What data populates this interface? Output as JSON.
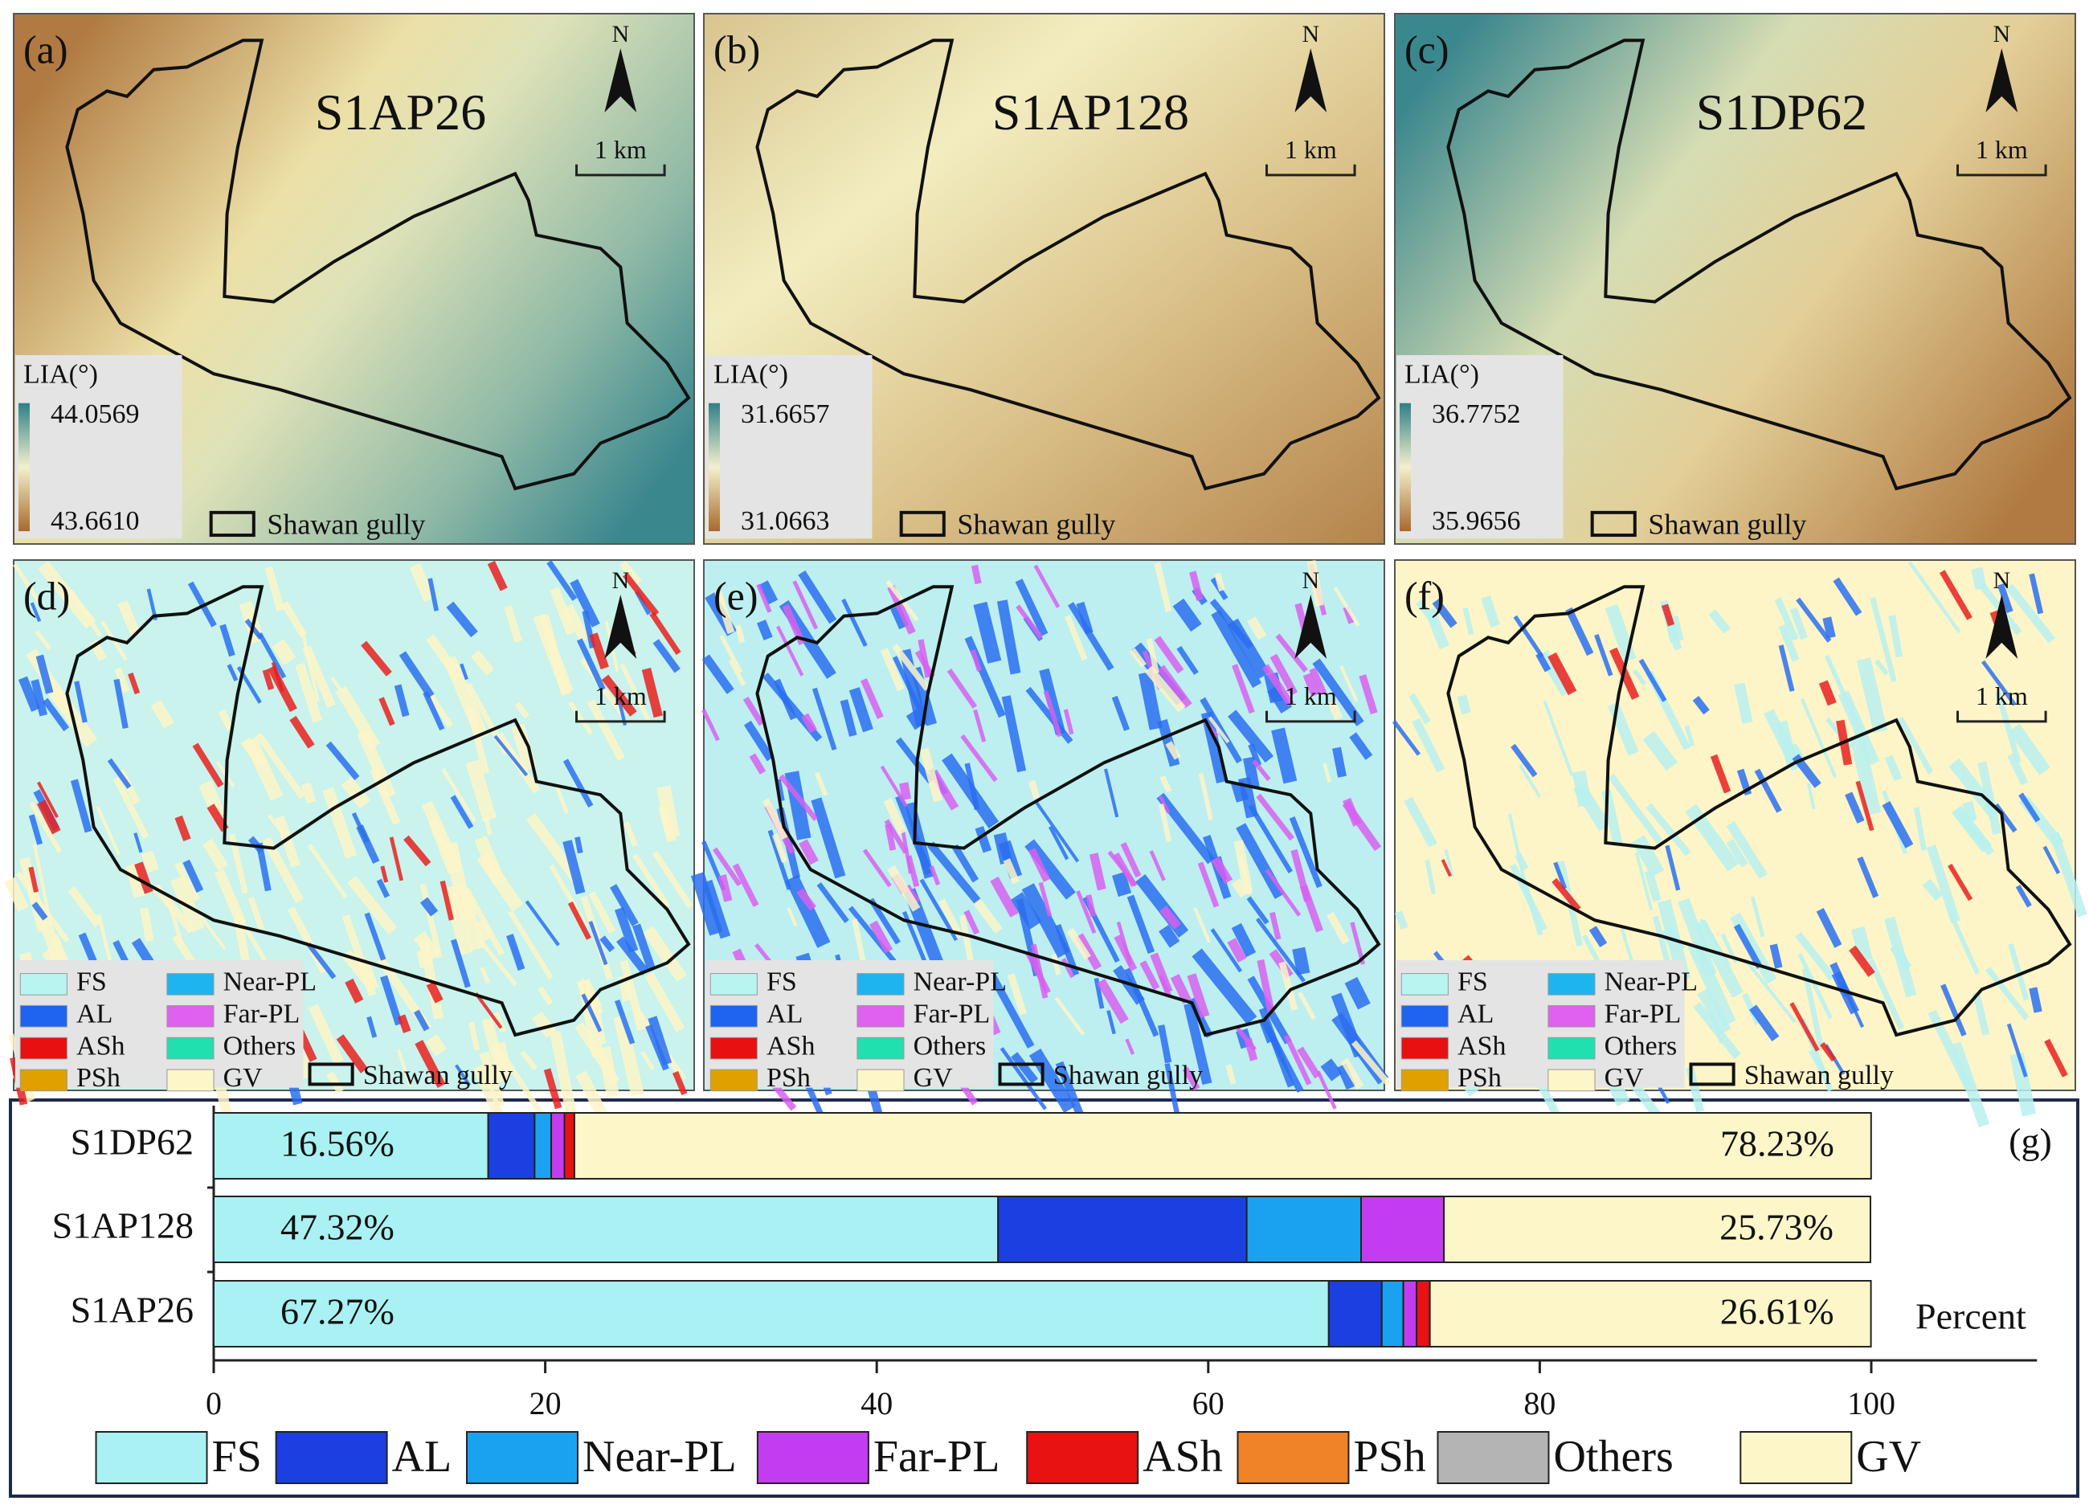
{
  "maps": {
    "lia_panels": [
      {
        "label": "(a)",
        "title": "S1AP26",
        "north": "N",
        "scale": "1 km",
        "legend_title": "LIA(°)",
        "max": "44.0569",
        "min": "43.6610",
        "boundary": "Shawan gully"
      },
      {
        "label": "(b)",
        "title": "S1AP128",
        "north": "N",
        "scale": "1 km",
        "legend_title": "LIA(°)",
        "max": "31.6657",
        "min": "31.0663",
        "boundary": "Shawan gully"
      },
      {
        "label": "(c)",
        "title": "S1DP62",
        "north": "N",
        "scale": "1 km",
        "legend_title": "LIA(°)",
        "max": "36.7752",
        "min": "35.9656",
        "boundary": "Shawan gully"
      }
    ],
    "class_panels": [
      {
        "label": "(d)",
        "north": "N",
        "scale": "1 km",
        "boundary": "Shawan gully"
      },
      {
        "label": "(e)",
        "north": "N",
        "scale": "1 km",
        "boundary": "Shawan gully"
      },
      {
        "label": "(f)",
        "north": "N",
        "scale": "1 km",
        "boundary": "Shawan gully"
      }
    ],
    "class_legend": [
      "FS",
      "AL",
      "ASh",
      "PSh",
      "Near-PL",
      "Far-PL",
      "Others",
      "GV"
    ]
  },
  "chart_data": {
    "type": "stacked-barh",
    "panel_label": "(g)",
    "xlabel": "Percent",
    "categories": [
      "S1DP62",
      "S1AP128",
      "S1AP26"
    ],
    "series": [
      {
        "name": "FS",
        "color": "#a9f1f2",
        "values": [
          16.56,
          47.32,
          67.27
        ],
        "value_labels": [
          "16.56%",
          "47.32%",
          "67.27%"
        ]
      },
      {
        "name": "AL",
        "color": "#1b3fe0",
        "values": [
          2.8,
          15.0,
          3.2
        ]
      },
      {
        "name": "Near-PL",
        "color": "#1aa2f0",
        "values": [
          1.0,
          6.9,
          1.3
        ]
      },
      {
        "name": "Far-PL",
        "color": "#c43cf0",
        "values": [
          0.8,
          5.0,
          0.8
        ]
      },
      {
        "name": "ASh",
        "color": "#e81212",
        "values": [
          0.6,
          0,
          0.8
        ]
      },
      {
        "name": "PSh",
        "color": "#f08228",
        "values": [
          0,
          0,
          0
        ]
      },
      {
        "name": "Others",
        "color": "#b4b4b4",
        "values": [
          0,
          0,
          0
        ]
      },
      {
        "name": "GV",
        "color": "#fdf6c9",
        "values": [
          78.23,
          25.73,
          26.61
        ],
        "value_labels": [
          "78.23%",
          "25.73%",
          "26.61%"
        ]
      }
    ],
    "xlim": [
      0,
      110
    ],
    "xticks": [
      0,
      20,
      40,
      60,
      80,
      100
    ]
  }
}
